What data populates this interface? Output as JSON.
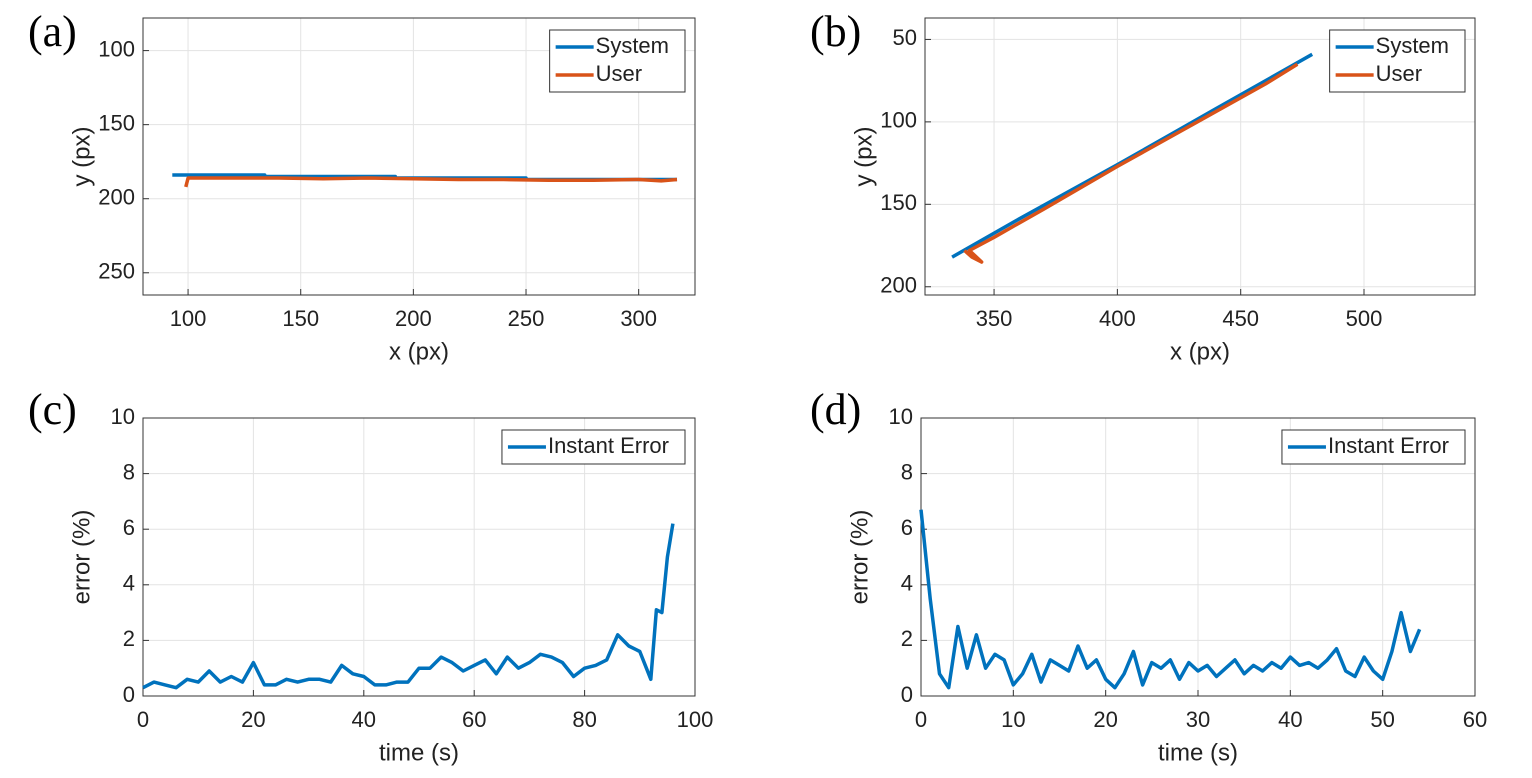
{
  "chart_data": [
    {
      "type": "line",
      "panel_label": "(a)",
      "xlabel": "x (px)",
      "ylabel": "y (px)",
      "xlim": [
        80,
        325
      ],
      "ylim": [
        78,
        265
      ],
      "y_reverse": true,
      "xticks": [
        100,
        150,
        200,
        250,
        300
      ],
      "yticks": [
        100,
        150,
        200,
        250
      ],
      "grid": true,
      "legend": "upper right",
      "series": [
        {
          "name": "System",
          "color": "#0072bd",
          "x": [
            93,
            134,
            134,
            192,
            192,
            250,
            250,
            317
          ],
          "values": [
            184,
            184,
            185,
            185,
            186,
            186,
            187,
            187
          ]
        },
        {
          "name": "User",
          "color": "#d95319",
          "x": [
            99,
            100,
            105,
            120,
            140,
            160,
            180,
            200,
            220,
            240,
            260,
            280,
            300,
            310,
            317
          ],
          "values": [
            192,
            186,
            186,
            186,
            186,
            186.5,
            186,
            186.5,
            187,
            187,
            187.5,
            187.5,
            187,
            188,
            187
          ]
        }
      ]
    },
    {
      "type": "line",
      "panel_label": "(b)",
      "xlabel": "x (px)",
      "ylabel": "y (px)",
      "xlim": [
        322,
        545
      ],
      "ylim": [
        37,
        205
      ],
      "y_reverse": true,
      "xticks": [
        350,
        400,
        450,
        500
      ],
      "yticks": [
        50,
        100,
        150,
        200
      ],
      "grid": true,
      "legend": "upper right",
      "series": [
        {
          "name": "System",
          "color": "#0072bd",
          "x": [
            333,
            360,
            400,
            440,
            479
          ],
          "values": [
            182,
            159,
            126,
            92,
            59
          ]
        },
        {
          "name": "User",
          "color": "#d95319",
          "x": [
            338,
            341,
            345,
            340,
            350,
            370,
            400,
            430,
            460,
            473
          ],
          "values": [
            178,
            182,
            185,
            178,
            170,
            153,
            127,
            102,
            77,
            65
          ]
        }
      ]
    },
    {
      "type": "line",
      "panel_label": "(c)",
      "xlabel": "time (s)",
      "ylabel": "error (%)",
      "xlim": [
        0,
        100
      ],
      "ylim": [
        0,
        10
      ],
      "xticks": [
        0,
        20,
        40,
        60,
        80,
        100
      ],
      "yticks": [
        0,
        2,
        4,
        6,
        8,
        10
      ],
      "grid": true,
      "legend": "upper right",
      "x": [
        0,
        2,
        4,
        6,
        8,
        10,
        12,
        14,
        16,
        18,
        20,
        22,
        24,
        26,
        28,
        30,
        32,
        34,
        36,
        38,
        40,
        42,
        44,
        46,
        48,
        50,
        52,
        54,
        56,
        58,
        60,
        62,
        64,
        66,
        68,
        70,
        72,
        74,
        76,
        78,
        80,
        82,
        84,
        86,
        88,
        90,
        92,
        93,
        94,
        95,
        96
      ],
      "series": [
        {
          "name": "Instant Error",
          "color": "#0072bd",
          "values": [
            0.3,
            0.5,
            0.4,
            0.3,
            0.6,
            0.5,
            0.9,
            0.5,
            0.7,
            0.5,
            1.2,
            0.4,
            0.4,
            0.6,
            0.5,
            0.6,
            0.6,
            0.5,
            1.1,
            0.8,
            0.7,
            0.4,
            0.4,
            0.5,
            0.5,
            1.0,
            1.0,
            1.4,
            1.2,
            0.9,
            1.1,
            1.3,
            0.8,
            1.4,
            1.0,
            1.2,
            1.5,
            1.4,
            1.2,
            0.7,
            1.0,
            1.1,
            1.3,
            2.2,
            1.8,
            1.6,
            0.6,
            3.1,
            3.0,
            5.0,
            6.2
          ]
        }
      ]
    },
    {
      "type": "line",
      "panel_label": "(d)",
      "xlabel": "time (s)",
      "ylabel": "error (%)",
      "xlim": [
        0,
        60
      ],
      "ylim": [
        0,
        10
      ],
      "xticks": [
        0,
        10,
        20,
        30,
        40,
        50,
        60
      ],
      "yticks": [
        0,
        2,
        4,
        6,
        8,
        10
      ],
      "grid": true,
      "legend": "upper right",
      "x": [
        0,
        1,
        2,
        3,
        4,
        5,
        6,
        7,
        8,
        9,
        10,
        11,
        12,
        13,
        14,
        15,
        16,
        17,
        18,
        19,
        20,
        21,
        22,
        23,
        24,
        25,
        26,
        27,
        28,
        29,
        30,
        31,
        32,
        33,
        34,
        35,
        36,
        37,
        38,
        39,
        40,
        41,
        42,
        43,
        44,
        45,
        46,
        47,
        48,
        49,
        50,
        51,
        52,
        53,
        54
      ],
      "series": [
        {
          "name": "Instant Error",
          "color": "#0072bd",
          "values": [
            6.7,
            3.5,
            0.8,
            0.3,
            2.5,
            1.0,
            2.2,
            1.0,
            1.5,
            1.3,
            0.4,
            0.8,
            1.5,
            0.5,
            1.3,
            1.1,
            0.9,
            1.8,
            1.0,
            1.3,
            0.6,
            0.3,
            0.8,
            1.6,
            0.4,
            1.2,
            1.0,
            1.3,
            0.6,
            1.2,
            0.9,
            1.1,
            0.7,
            1.0,
            1.3,
            0.8,
            1.1,
            0.9,
            1.2,
            1.0,
            1.4,
            1.1,
            1.2,
            1.0,
            1.3,
            1.7,
            0.9,
            0.7,
            1.4,
            0.9,
            0.6,
            1.6,
            3.0,
            1.6,
            2.4
          ]
        }
      ]
    }
  ]
}
